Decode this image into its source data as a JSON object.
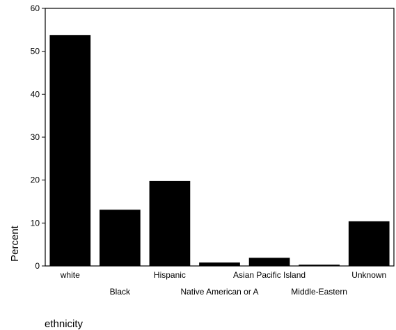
{
  "chart_data": {
    "type": "bar",
    "categories": [
      "white",
      "Black",
      "Hispanic",
      "Native American or A",
      "Asian Pacific Island",
      "Middle-Eastern",
      "Unknown"
    ],
    "values": [
      53.8,
      13.1,
      19.8,
      0.8,
      1.9,
      0.3,
      10.4
    ],
    "ylabel": "Percent",
    "xlabel": "ethnicity",
    "ylim": [
      0,
      60
    ],
    "yticks": [
      0,
      10,
      20,
      30,
      40,
      50,
      60
    ],
    "grid": false,
    "legend": "none",
    "bar_color": "#000000"
  }
}
